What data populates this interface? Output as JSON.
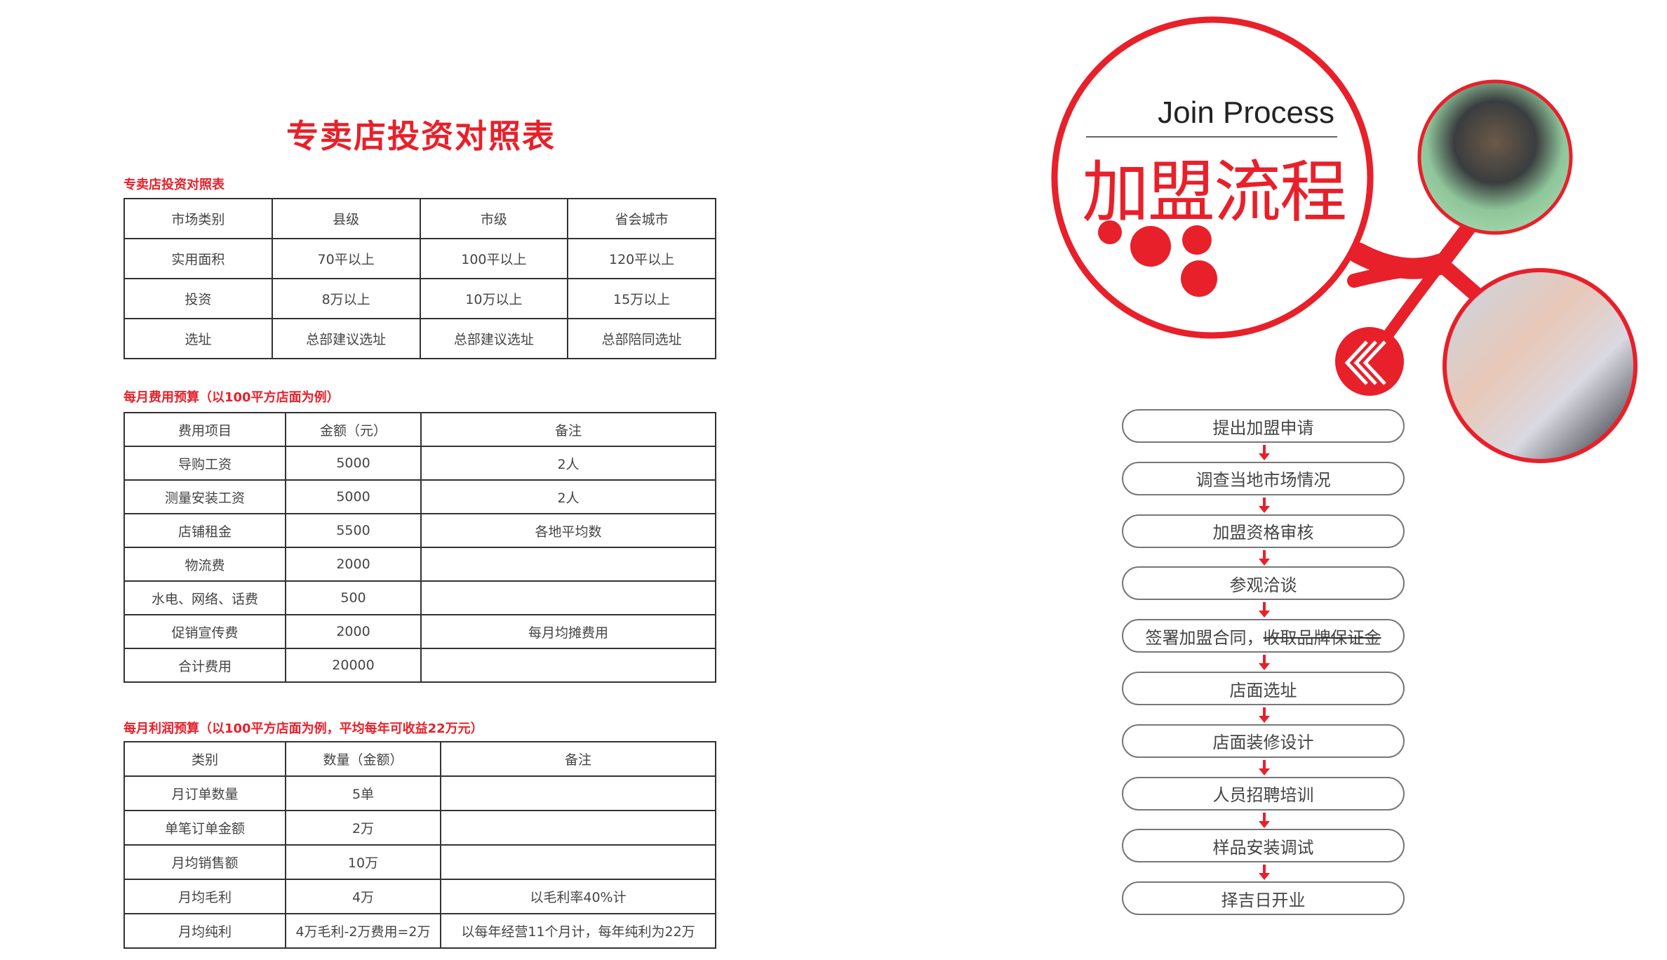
{
  "left": {
    "title": "专卖店投资对照表",
    "table1": {
      "label": "专卖店投资对照表",
      "rows": [
        [
          "市场类别",
          "县级",
          "市级",
          "省会城市"
        ],
        [
          "实用面积",
          "70平以上",
          "100平以上",
          "120平以上"
        ],
        [
          "投资",
          "8万以上",
          "10万以上",
          "15万以上"
        ],
        [
          "选址",
          "总部建议选址",
          "总部建议选址",
          "总部陪同选址"
        ]
      ]
    },
    "table2": {
      "label": "每月费用预算（以100平方店面为例）",
      "rows": [
        [
          "费用项目",
          "金额（元）",
          "备注"
        ],
        [
          "导购工资",
          "5000",
          "2人"
        ],
        [
          "测量安装工资",
          "5000",
          "2人"
        ],
        [
          "店铺租金",
          "5500",
          "各地平均数"
        ],
        [
          "物流费",
          "2000",
          ""
        ],
        [
          "水电、网络、话费",
          "500",
          ""
        ],
        [
          "促销宣传费",
          "2000",
          "每月均摊费用"
        ],
        [
          "合计费用",
          "20000",
          ""
        ]
      ]
    },
    "table3": {
      "label": "每月利润预算（以100平方店面为例，平均每年可收益22万元）",
      "rows": [
        [
          "类别",
          "数量（金额）",
          "备注"
        ],
        [
          "月订单数量",
          "5单",
          ""
        ],
        [
          "单笔订单金额",
          "2万",
          ""
        ],
        [
          "月均销售额",
          "10万",
          ""
        ],
        [
          "月均毛利",
          "4万",
          "以毛利率40%计"
        ],
        [
          "月均纯利",
          "4万毛利-2万费用=2万",
          "以每年经营11个月计，每年纯利为22万"
        ]
      ]
    }
  },
  "right": {
    "title_en": "Join Process",
    "title_cn": "加盟流程",
    "steps": [
      {
        "text": "提出加盟申请"
      },
      {
        "text": "调查当地市场情况"
      },
      {
        "text": "加盟资格审核"
      },
      {
        "text": "参观洽谈"
      },
      {
        "text": "签署加盟合同，",
        "struck": "收取品牌保证金"
      },
      {
        "text": "店面选址"
      },
      {
        "text": "店面装修设计"
      },
      {
        "text": "人员招聘培训"
      },
      {
        "text": "样品安装调试"
      },
      {
        "text": "择吉日开业"
      }
    ],
    "icons": [
      "chevron-left-icon",
      "arrow-down-icon"
    ]
  },
  "colors": {
    "accent": "#e8202a",
    "text": "#444444",
    "border": "#333333"
  }
}
